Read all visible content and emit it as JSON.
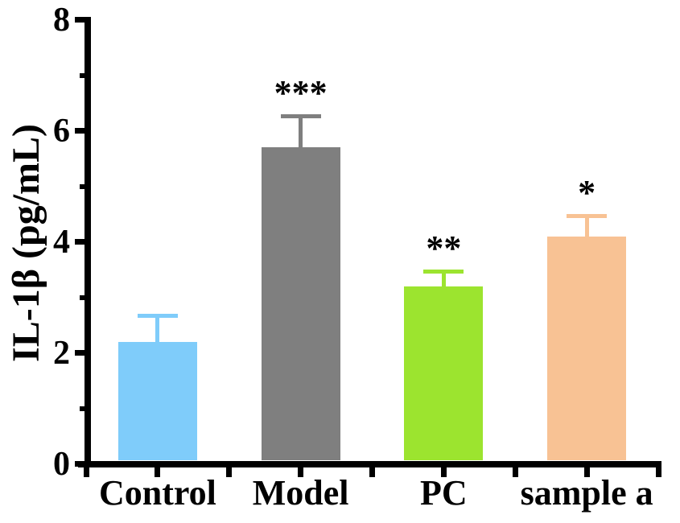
{
  "chart_data": {
    "type": "bar",
    "title": "",
    "ylabel": "IL-1β (pg/mL)",
    "xlabel": "",
    "categories": [
      "Control",
      "Model",
      "PC",
      "sample a"
    ],
    "values": [
      2.2,
      5.7,
      3.2,
      4.1
    ],
    "errors": [
      0.5,
      0.6,
      0.3,
      0.4
    ],
    "error_direction": "plus-only",
    "bar_colors": [
      "#7FCCFA",
      "#7F7F7F",
      "#9CE42F",
      "#F8C294"
    ],
    "significance_markers": [
      "",
      "***",
      "**",
      "*"
    ],
    "ylim": [
      0,
      8
    ],
    "y_major_ticks": [
      0,
      2,
      4,
      6,
      8
    ],
    "y_minor_ticks": [
      1,
      3,
      5,
      7
    ],
    "grid": "off",
    "legend": "none",
    "axis_color": "#000000",
    "text_color": "#000000",
    "background_color": "#ffffff"
  }
}
